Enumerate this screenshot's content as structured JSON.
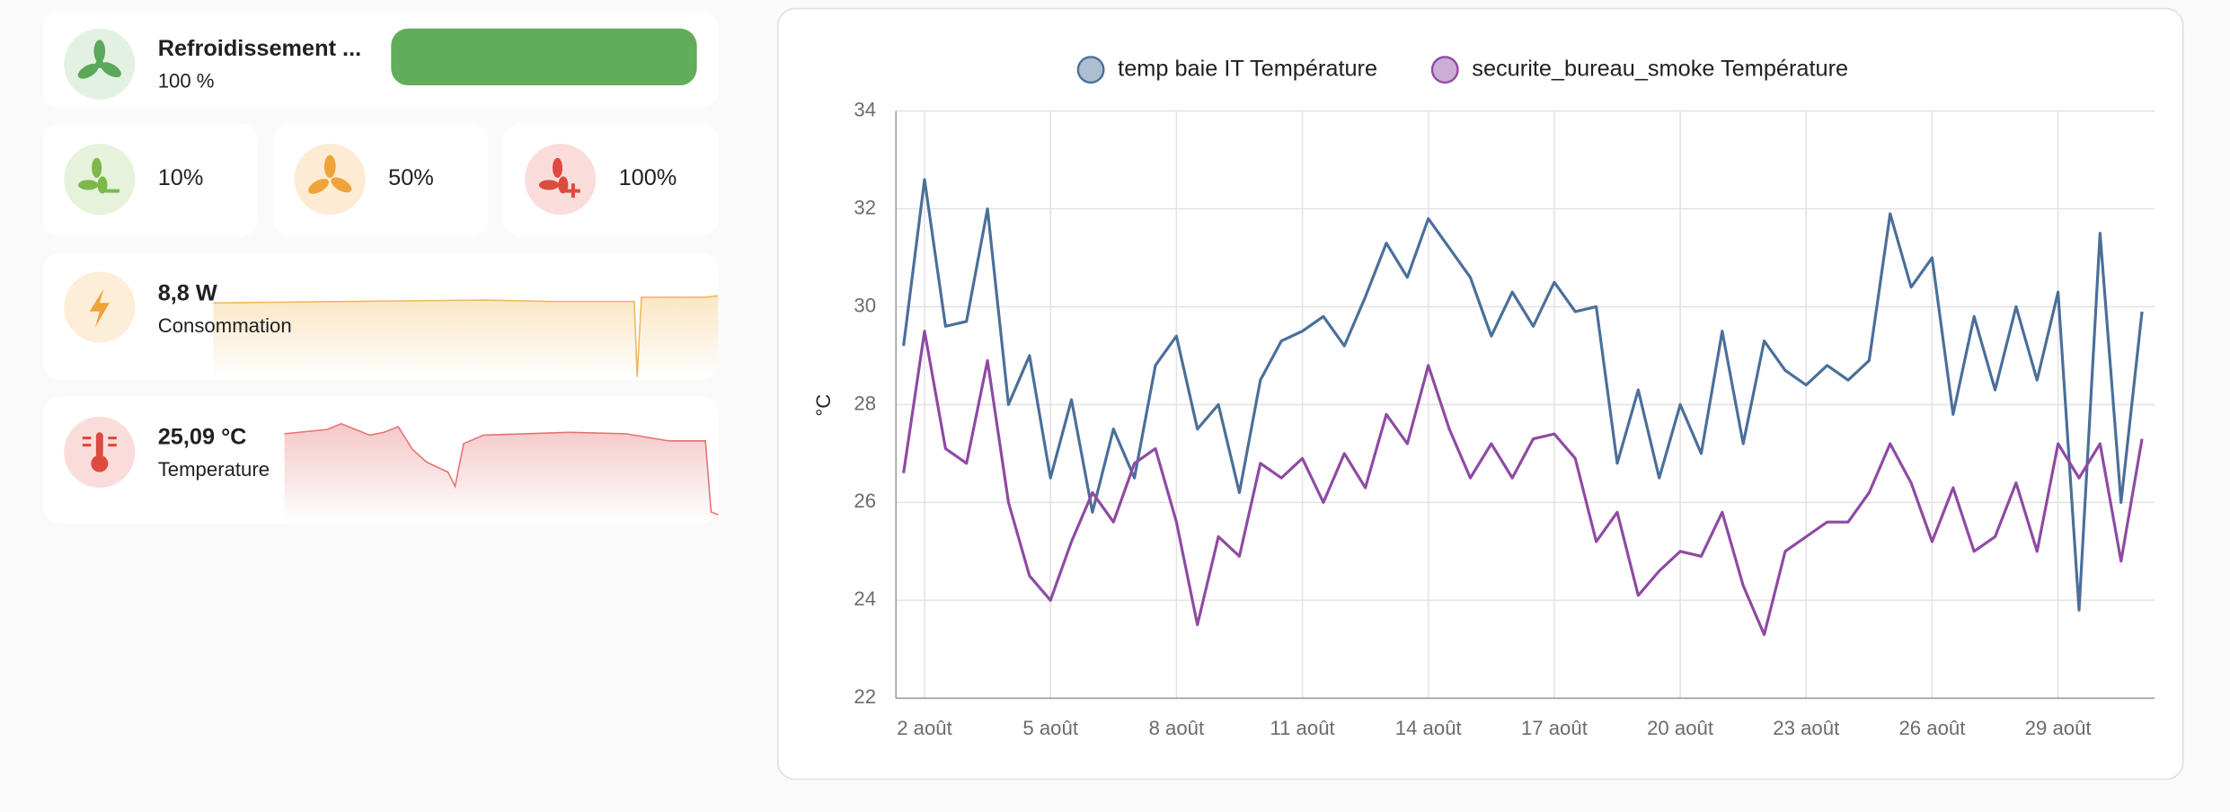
{
  "fan": {
    "name": "Refroidissement ...",
    "value": 100,
    "value_label": "100 %"
  },
  "presets": [
    "10%",
    "50%",
    "100%"
  ],
  "sensors": [
    {
      "state": "8,8 W",
      "name": "Consommation"
    },
    {
      "state": "25,09 °C",
      "name": "Temperature"
    }
  ],
  "chart_data": {
    "type": "line",
    "ylabel": "°C",
    "grid": true,
    "x": [
      1.5,
      2,
      2.5,
      3,
      3.5,
      4,
      4.5,
      5,
      5.5,
      6,
      6.5,
      7,
      7.5,
      8,
      8.5,
      9,
      9.5,
      10,
      10.5,
      11,
      11.5,
      12,
      12.5,
      13,
      13.5,
      14,
      14.5,
      15,
      15.5,
      16,
      16.5,
      17,
      17.5,
      18,
      18.5,
      19,
      19.5,
      20,
      20.5,
      21,
      21.5,
      22,
      22.5,
      23,
      23.5,
      24,
      24.5,
      25,
      25.5,
      26,
      26.5,
      27,
      27.5,
      28,
      28.5,
      29,
      29.5,
      30,
      30.5,
      31
    ],
    "xlim": [
      1.32,
      31.3
    ],
    "xticks": [
      {
        "value": 2,
        "label": "2 août"
      },
      {
        "value": 5,
        "label": "5 août"
      },
      {
        "value": 8,
        "label": "8 août"
      },
      {
        "value": 11,
        "label": "11 août"
      },
      {
        "value": 14,
        "label": "14 août"
      },
      {
        "value": 17,
        "label": "17 août"
      },
      {
        "value": 20,
        "label": "20 août"
      },
      {
        "value": 23,
        "label": "23 août"
      },
      {
        "value": 26,
        "label": "26 août"
      },
      {
        "value": 29,
        "label": "29 août"
      }
    ],
    "ylim": [
      22,
      34
    ],
    "yticks": [
      22,
      24,
      26,
      28,
      30,
      32,
      34
    ],
    "series": [
      {
        "name": "temp baie IT Température",
        "color": "#4a6f99",
        "values": [
          29.2,
          32.6,
          29.6,
          29.7,
          32.0,
          28.0,
          29.0,
          26.5,
          28.1,
          25.8,
          27.5,
          26.5,
          28.8,
          29.4,
          27.5,
          28.0,
          26.2,
          28.5,
          29.3,
          29.5,
          29.8,
          29.2,
          30.2,
          31.3,
          30.6,
          31.8,
          31.2,
          30.6,
          29.4,
          30.3,
          29.6,
          30.5,
          29.9,
          30.0,
          26.8,
          28.3,
          26.5,
          28.0,
          27.0,
          29.5,
          27.2,
          29.3,
          28.7,
          28.4,
          28.8,
          28.5,
          28.9,
          31.9,
          30.4,
          31.0,
          27.8,
          29.8,
          28.3,
          30.0,
          28.5,
          30.3,
          23.8,
          31.5,
          26.0,
          29.9
        ]
      },
      {
        "name": "securite_bureau_smoke Température",
        "color": "#8e4aa3",
        "values": [
          26.6,
          29.5,
          27.1,
          26.8,
          28.9,
          26.0,
          24.5,
          24.0,
          25.2,
          26.2,
          25.6,
          26.8,
          27.1,
          25.6,
          23.5,
          25.3,
          24.9,
          26.8,
          26.5,
          26.9,
          26.0,
          27.0,
          26.3,
          27.8,
          27.2,
          28.8,
          27.5,
          26.5,
          27.2,
          26.5,
          27.3,
          27.4,
          26.9,
          25.2,
          25.8,
          24.1,
          24.6,
          25.0,
          24.9,
          25.8,
          24.3,
          23.3,
          25.0,
          25.3,
          25.6,
          25.6,
          26.2,
          27.2,
          26.4,
          25.2,
          26.3,
          25.0,
          25.3,
          26.4,
          25.0,
          27.2,
          26.5,
          27.2,
          24.8,
          27.3
        ]
      }
    ]
  }
}
